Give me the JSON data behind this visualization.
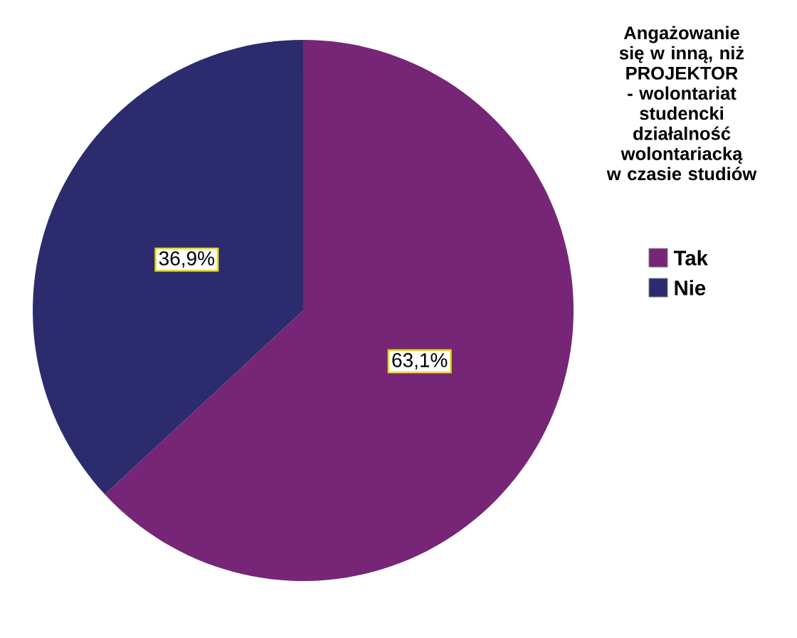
{
  "chart_data": {
    "type": "pie",
    "legend_title": "Angażowanie się w inną, niż PROJEKTOR - wolontariat studencki działalność wolontariacką w czasie studiów",
    "categories": [
      "Tak",
      "Nie"
    ],
    "values": [
      63.1,
      36.9
    ],
    "value_labels": [
      "63,1%",
      "36,9%"
    ],
    "colors": [
      "#762577",
      "#2c2b6e"
    ],
    "legend": "right"
  }
}
